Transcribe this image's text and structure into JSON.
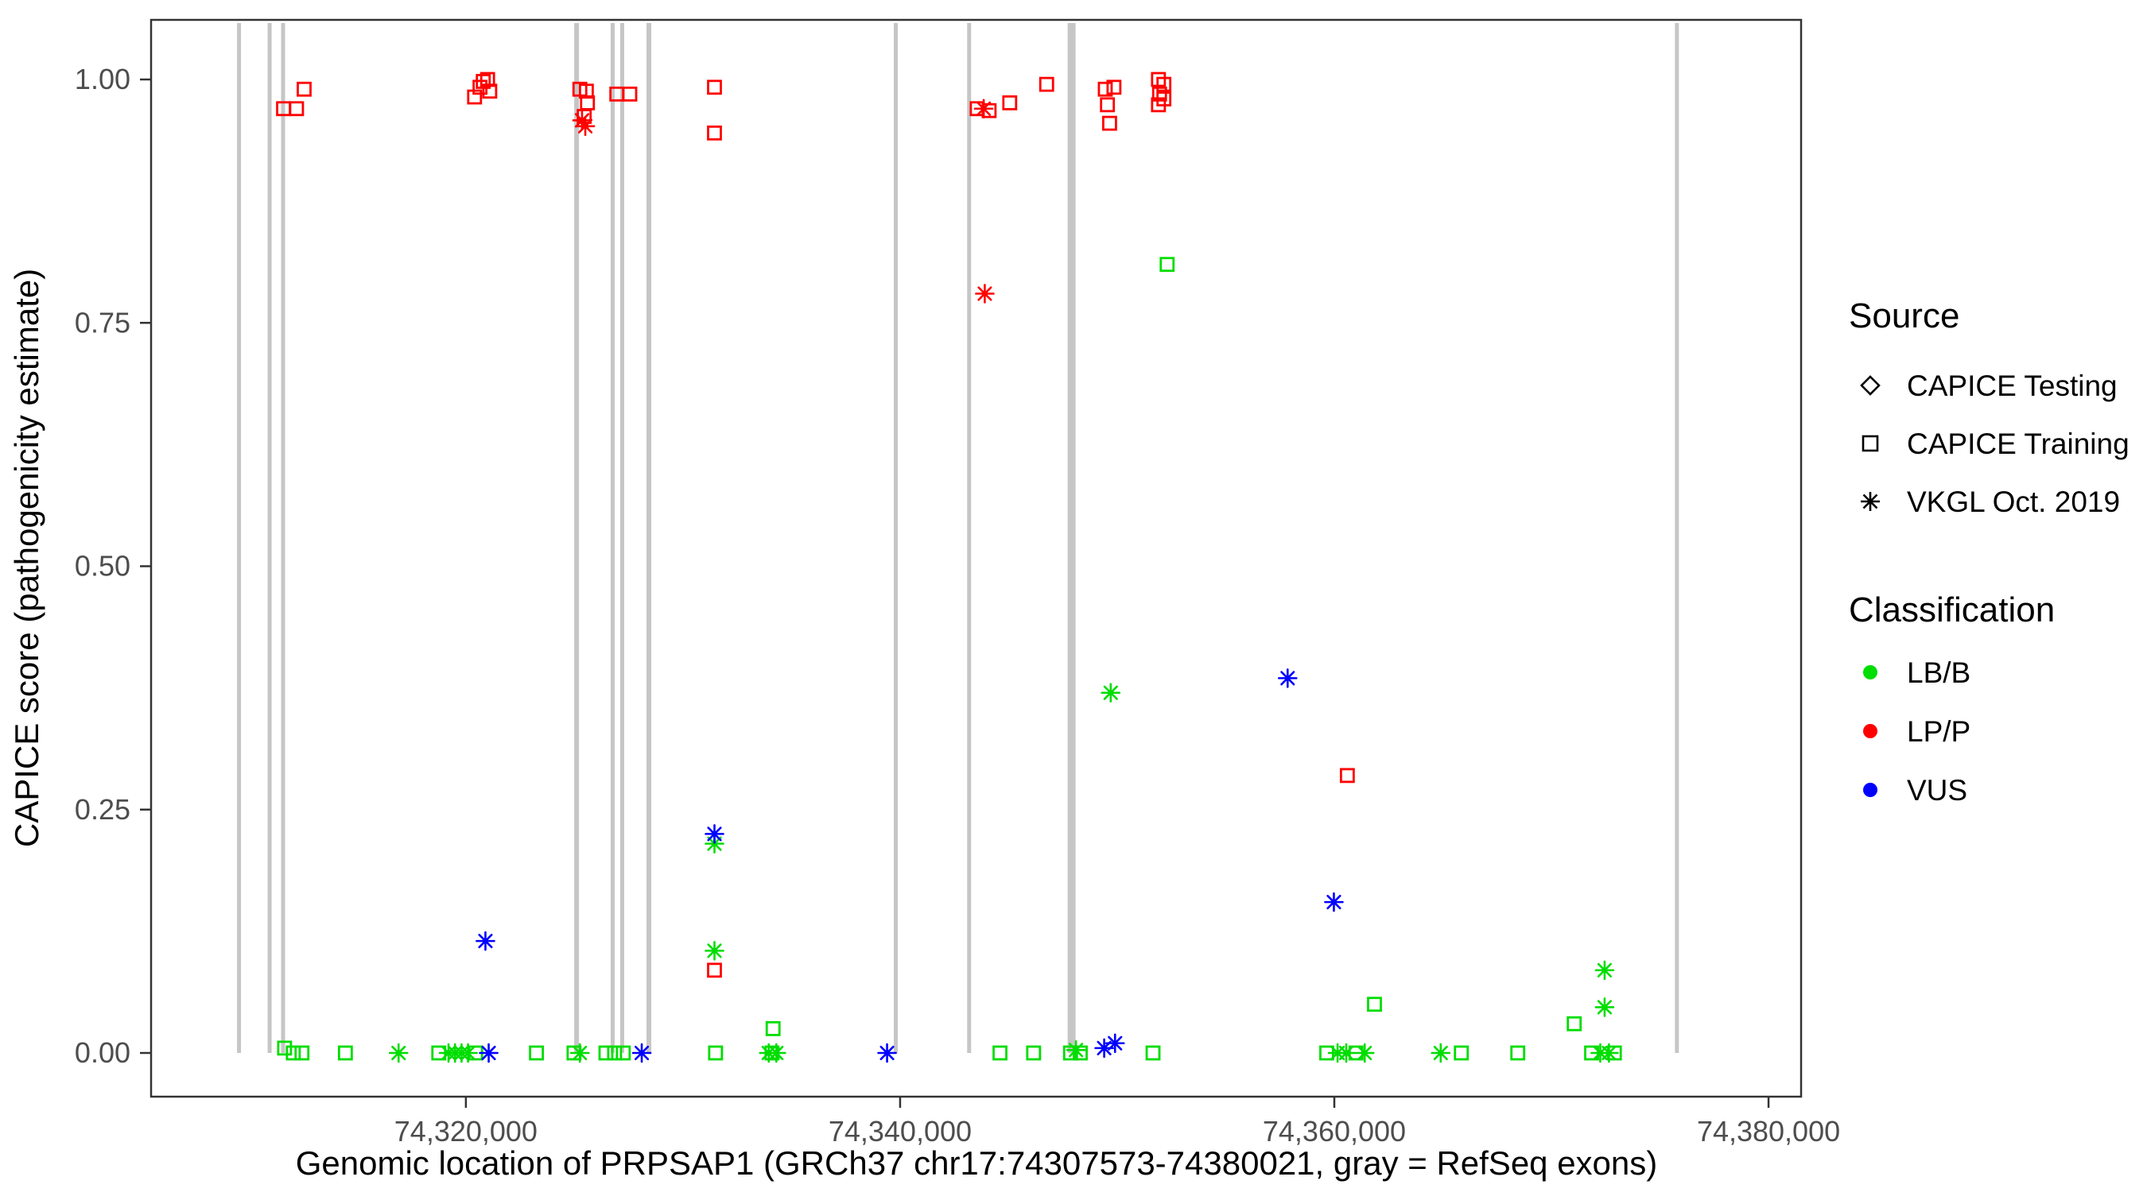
{
  "axes": {
    "y_label": "CAPICE score (pathogenicity estimate)",
    "x_label": "Genomic location of PRPSAP1 (GRCh37 chr17:74307573-74380021, gray = RefSeq exons)",
    "y_ticks": [
      "0.00",
      "0.25",
      "0.50",
      "0.75",
      "1.00"
    ],
    "x_ticks": [
      "74,320,000",
      "74,340,000",
      "74,360,000",
      "74,380,000"
    ]
  },
  "legend": {
    "source": {
      "title": "Source",
      "items": [
        {
          "label": "CAPICE Testing",
          "symbol": "diamond"
        },
        {
          "label": "CAPICE Training",
          "symbol": "square"
        },
        {
          "label": "VKGL Oct. 2019",
          "symbol": "asterisk"
        }
      ]
    },
    "classification": {
      "title": "Classification",
      "items": [
        {
          "label": "LB/B",
          "color": "#00dd00"
        },
        {
          "label": "LP/P",
          "color": "#ff0000"
        },
        {
          "label": "VUS",
          "color": "#0000ff"
        }
      ]
    }
  },
  "chart_data": {
    "type": "scatter",
    "title": "",
    "xlabel": "Genomic location of PRPSAP1 (GRCh37 chr17:74307573-74380021, gray = RefSeq exons)",
    "ylabel": "CAPICE score (pathogenicity estimate)",
    "x_range": [
      74305500,
      74381500
    ],
    "y_range": [
      0,
      1
    ],
    "x_tick_values": [
      74320000,
      74340000,
      74360000,
      74380000
    ],
    "y_tick_values": [
      0,
      0.25,
      0.5,
      0.75,
      1.0
    ],
    "grid": false,
    "legend_position": "right",
    "colors": {
      "LB/B": "#00dd00",
      "LP/P": "#ff0000",
      "VUS": "#0000ff",
      "exon": "#c6c6c6"
    },
    "exons": [
      {
        "x": 74309550,
        "w": 5
      },
      {
        "x": 74310960,
        "w": 5
      },
      {
        "x": 74311580,
        "w": 5
      },
      {
        "x": 74325100,
        "w": 6
      },
      {
        "x": 74326760,
        "w": 5
      },
      {
        "x": 74327200,
        "w": 5
      },
      {
        "x": 74328430,
        "w": 6
      },
      {
        "x": 74339800,
        "w": 5
      },
      {
        "x": 74343180,
        "w": 5
      },
      {
        "x": 74347900,
        "w": 10
      },
      {
        "x": 74375780,
        "w": 5
      }
    ],
    "points": [
      {
        "x": 74311600,
        "y": 0.97,
        "source": "CAPICE Training",
        "class": "LP/P"
      },
      {
        "x": 74312200,
        "y": 0.97,
        "source": "CAPICE Training",
        "class": "LP/P"
      },
      {
        "x": 74312550,
        "y": 0.99,
        "source": "CAPICE Training",
        "class": "LP/P"
      },
      {
        "x": 74320400,
        "y": 0.982,
        "source": "CAPICE Training",
        "class": "LP/P"
      },
      {
        "x": 74320650,
        "y": 0.992,
        "source": "CAPICE Training",
        "class": "LP/P"
      },
      {
        "x": 74320800,
        "y": 0.998,
        "source": "CAPICE Training",
        "class": "LP/P"
      },
      {
        "x": 74321000,
        "y": 1.0,
        "source": "CAPICE Training",
        "class": "LP/P"
      },
      {
        "x": 74321100,
        "y": 0.988,
        "source": "CAPICE Training",
        "class": "LP/P"
      },
      {
        "x": 74325250,
        "y": 0.99,
        "source": "CAPICE Training",
        "class": "LP/P"
      },
      {
        "x": 74325550,
        "y": 0.988,
        "source": "CAPICE Training",
        "class": "LP/P"
      },
      {
        "x": 74325600,
        "y": 0.976,
        "source": "CAPICE Training",
        "class": "LP/P"
      },
      {
        "x": 74325450,
        "y": 0.962,
        "source": "CAPICE Training",
        "class": "LP/P"
      },
      {
        "x": 74326950,
        "y": 0.985,
        "source": "CAPICE Training",
        "class": "LP/P"
      },
      {
        "x": 74327550,
        "y": 0.985,
        "source": "CAPICE Training",
        "class": "LP/P"
      },
      {
        "x": 74331450,
        "y": 0.992,
        "source": "CAPICE Training",
        "class": "LP/P"
      },
      {
        "x": 74331450,
        "y": 0.945,
        "source": "CAPICE Training",
        "class": "LP/P"
      },
      {
        "x": 74343550,
        "y": 0.97,
        "source": "CAPICE Training",
        "class": "LP/P"
      },
      {
        "x": 74344100,
        "y": 0.968,
        "source": "CAPICE Training",
        "class": "LP/P"
      },
      {
        "x": 74345050,
        "y": 0.976,
        "source": "CAPICE Training",
        "class": "LP/P"
      },
      {
        "x": 74346750,
        "y": 0.995,
        "source": "CAPICE Training",
        "class": "LP/P"
      },
      {
        "x": 74349450,
        "y": 0.99,
        "source": "CAPICE Training",
        "class": "LP/P"
      },
      {
        "x": 74349850,
        "y": 0.992,
        "source": "CAPICE Training",
        "class": "LP/P"
      },
      {
        "x": 74349550,
        "y": 0.974,
        "source": "CAPICE Training",
        "class": "LP/P"
      },
      {
        "x": 74349650,
        "y": 0.955,
        "source": "CAPICE Training",
        "class": "LP/P"
      },
      {
        "x": 74351900,
        "y": 1.0,
        "source": "CAPICE Training",
        "class": "LP/P"
      },
      {
        "x": 74352150,
        "y": 0.995,
        "source": "CAPICE Training",
        "class": "LP/P"
      },
      {
        "x": 74351950,
        "y": 0.985,
        "source": "CAPICE Training",
        "class": "LP/P"
      },
      {
        "x": 74352150,
        "y": 0.98,
        "source": "CAPICE Training",
        "class": "LP/P"
      },
      {
        "x": 74351900,
        "y": 0.974,
        "source": "CAPICE Training",
        "class": "LP/P"
      },
      {
        "x": 74360600,
        "y": 0.285,
        "source": "CAPICE Training",
        "class": "LP/P"
      },
      {
        "x": 74331450,
        "y": 0.085,
        "source": "CAPICE Training",
        "class": "LP/P"
      },
      {
        "x": 74325350,
        "y": 0.958,
        "source": "VKGL Oct. 2019",
        "class": "LP/P"
      },
      {
        "x": 74325500,
        "y": 0.952,
        "source": "VKGL Oct. 2019",
        "class": "LP/P"
      },
      {
        "x": 74343850,
        "y": 0.97,
        "source": "VKGL Oct. 2019",
        "class": "LP/P"
      },
      {
        "x": 74343900,
        "y": 0.78,
        "source": "VKGL Oct. 2019",
        "class": "LP/P"
      },
      {
        "x": 74352300,
        "y": 0.81,
        "source": "CAPICE Training",
        "class": "LB/B"
      },
      {
        "x": 74361850,
        "y": 0.05,
        "source": "CAPICE Training",
        "class": "LB/B"
      },
      {
        "x": 74371050,
        "y": 0.03,
        "source": "CAPICE Training",
        "class": "LB/B"
      },
      {
        "x": 74334150,
        "y": 0.025,
        "source": "CAPICE Training",
        "class": "LB/B"
      },
      {
        "x": 74311650,
        "y": 0.005,
        "source": "CAPICE Training",
        "class": "LB/B"
      },
      {
        "x": 74312050,
        "y": 0.0,
        "source": "CAPICE Training",
        "class": "LB/B"
      },
      {
        "x": 74312450,
        "y": 0.0,
        "source": "CAPICE Training",
        "class": "LB/B"
      },
      {
        "x": 74314450,
        "y": 0.0,
        "source": "CAPICE Training",
        "class": "LB/B"
      },
      {
        "x": 74318750,
        "y": 0.0,
        "source": "CAPICE Training",
        "class": "LB/B"
      },
      {
        "x": 74320450,
        "y": 0.0,
        "source": "CAPICE Training",
        "class": "LB/B"
      },
      {
        "x": 74323250,
        "y": 0.0,
        "source": "CAPICE Training",
        "class": "LB/B"
      },
      {
        "x": 74324980,
        "y": 0.0,
        "source": "CAPICE Training",
        "class": "LB/B"
      },
      {
        "x": 74326450,
        "y": 0.0,
        "source": "CAPICE Training",
        "class": "LB/B"
      },
      {
        "x": 74326850,
        "y": 0.0,
        "source": "CAPICE Training",
        "class": "LB/B"
      },
      {
        "x": 74327250,
        "y": 0.0,
        "source": "CAPICE Training",
        "class": "LB/B"
      },
      {
        "x": 74331500,
        "y": 0.0,
        "source": "CAPICE Training",
        "class": "LB/B"
      },
      {
        "x": 74334100,
        "y": 0.0,
        "source": "CAPICE Training",
        "class": "LB/B"
      },
      {
        "x": 74344600,
        "y": 0.0,
        "source": "CAPICE Training",
        "class": "LB/B"
      },
      {
        "x": 74346150,
        "y": 0.0,
        "source": "CAPICE Training",
        "class": "LB/B"
      },
      {
        "x": 74347850,
        "y": 0.0,
        "source": "CAPICE Training",
        "class": "LB/B"
      },
      {
        "x": 74348300,
        "y": 0.0,
        "source": "CAPICE Training",
        "class": "LB/B"
      },
      {
        "x": 74351650,
        "y": 0.0,
        "source": "CAPICE Training",
        "class": "LB/B"
      },
      {
        "x": 74359650,
        "y": 0.0,
        "source": "CAPICE Training",
        "class": "LB/B"
      },
      {
        "x": 74361000,
        "y": 0.0,
        "source": "CAPICE Training",
        "class": "LB/B"
      },
      {
        "x": 74365850,
        "y": 0.0,
        "source": "CAPICE Training",
        "class": "LB/B"
      },
      {
        "x": 74368450,
        "y": 0.0,
        "source": "CAPICE Training",
        "class": "LB/B"
      },
      {
        "x": 74371850,
        "y": 0.0,
        "source": "CAPICE Training",
        "class": "LB/B"
      },
      {
        "x": 74372900,
        "y": 0.0,
        "source": "CAPICE Training",
        "class": "LB/B"
      },
      {
        "x": 74349700,
        "y": 0.37,
        "source": "VKGL Oct. 2019",
        "class": "LB/B"
      },
      {
        "x": 74331450,
        "y": 0.215,
        "source": "VKGL Oct. 2019",
        "class": "LB/B"
      },
      {
        "x": 74331450,
        "y": 0.105,
        "source": "VKGL Oct. 2019",
        "class": "LB/B"
      },
      {
        "x": 74372450,
        "y": 0.085,
        "source": "VKGL Oct. 2019",
        "class": "LB/B"
      },
      {
        "x": 74372450,
        "y": 0.047,
        "source": "VKGL Oct. 2019",
        "class": "LB/B"
      },
      {
        "x": 74316900,
        "y": 0.0,
        "source": "VKGL Oct. 2019",
        "class": "LB/B"
      },
      {
        "x": 74319200,
        "y": 0.0,
        "source": "VKGL Oct. 2019",
        "class": "LB/B"
      },
      {
        "x": 74319500,
        "y": 0.0,
        "source": "VKGL Oct. 2019",
        "class": "LB/B"
      },
      {
        "x": 74319800,
        "y": 0.0,
        "source": "VKGL Oct. 2019",
        "class": "LB/B"
      },
      {
        "x": 74320100,
        "y": 0.0,
        "source": "VKGL Oct. 2019",
        "class": "LB/B"
      },
      {
        "x": 74325250,
        "y": 0.0,
        "source": "VKGL Oct. 2019",
        "class": "LB/B"
      },
      {
        "x": 74333950,
        "y": 0.0,
        "source": "VKGL Oct. 2019",
        "class": "LB/B"
      },
      {
        "x": 74334300,
        "y": 0.0,
        "source": "VKGL Oct. 2019",
        "class": "LB/B"
      },
      {
        "x": 74348100,
        "y": 0.003,
        "source": "VKGL Oct. 2019",
        "class": "LB/B"
      },
      {
        "x": 74360150,
        "y": 0.0,
        "source": "VKGL Oct. 2019",
        "class": "LB/B"
      },
      {
        "x": 74360550,
        "y": 0.0,
        "source": "VKGL Oct. 2019",
        "class": "LB/B"
      },
      {
        "x": 74361400,
        "y": 0.0,
        "source": "VKGL Oct. 2019",
        "class": "LB/B"
      },
      {
        "x": 74364900,
        "y": 0.0,
        "source": "VKGL Oct. 2019",
        "class": "LB/B"
      },
      {
        "x": 74372250,
        "y": 0.0,
        "source": "VKGL Oct. 2019",
        "class": "LB/B"
      },
      {
        "x": 74372650,
        "y": 0.0,
        "source": "VKGL Oct. 2019",
        "class": "LB/B"
      },
      {
        "x": 74357850,
        "y": 0.385,
        "source": "VKGL Oct. 2019",
        "class": "VUS"
      },
      {
        "x": 74359980,
        "y": 0.155,
        "source": "VKGL Oct. 2019",
        "class": "VUS"
      },
      {
        "x": 74320900,
        "y": 0.115,
        "source": "VKGL Oct. 2019",
        "class": "VUS"
      },
      {
        "x": 74331450,
        "y": 0.225,
        "source": "VKGL Oct. 2019",
        "class": "VUS"
      },
      {
        "x": 74321050,
        "y": 0.0,
        "source": "VKGL Oct. 2019",
        "class": "VUS"
      },
      {
        "x": 74328100,
        "y": 0.0,
        "source": "VKGL Oct. 2019",
        "class": "VUS"
      },
      {
        "x": 74339400,
        "y": 0.0,
        "source": "VKGL Oct. 2019",
        "class": "VUS"
      },
      {
        "x": 74349400,
        "y": 0.005,
        "source": "VKGL Oct. 2019",
        "class": "VUS"
      },
      {
        "x": 74349900,
        "y": 0.01,
        "source": "VKGL Oct. 2019",
        "class": "VUS"
      }
    ]
  }
}
